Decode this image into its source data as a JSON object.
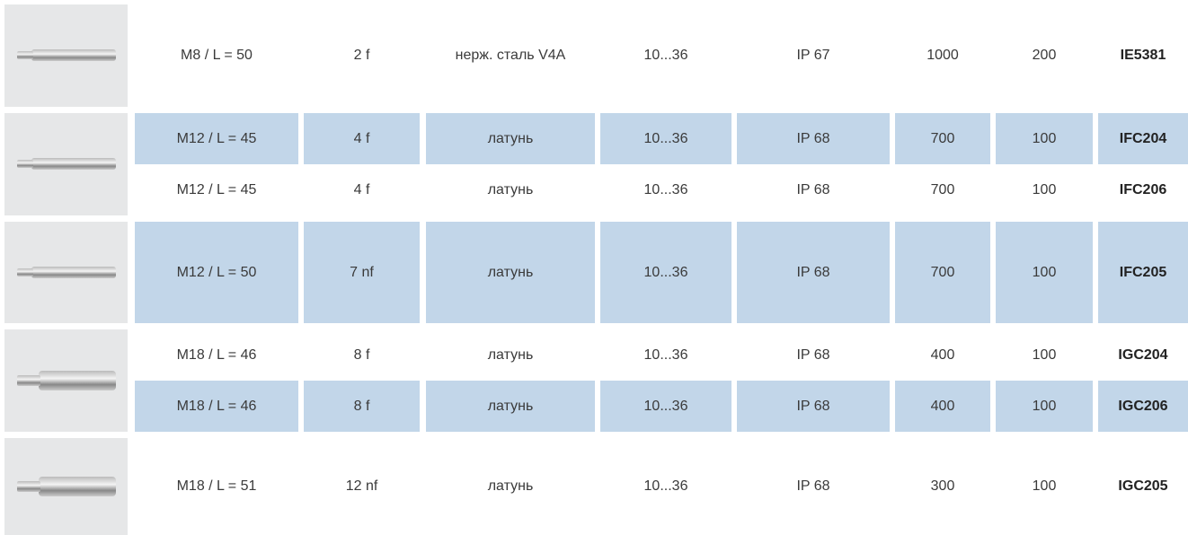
{
  "groups": [
    {
      "rows": [
        {
          "shaded": false,
          "cells": [
            "M8 / L = 50",
            "2 f",
            "нерж. сталь V4A",
            "10...36",
            "IP 67",
            "1000",
            "200",
            "IE5381"
          ]
        }
      ]
    },
    {
      "rows": [
        {
          "shaded": true,
          "cells": [
            "M12 / L = 45",
            "4 f",
            "латунь",
            "10...36",
            "IP 68",
            "700",
            "100",
            "IFC204"
          ]
        },
        {
          "shaded": false,
          "cells": [
            "M12 / L = 45",
            "4 f",
            "латунь",
            "10...36",
            "IP 68",
            "700",
            "100",
            "IFC206"
          ]
        }
      ]
    },
    {
      "rows": [
        {
          "shaded": true,
          "cells": [
            "M12 / L = 50",
            "7 nf",
            "латунь",
            "10...36",
            "IP 68",
            "700",
            "100",
            "IFC205"
          ]
        }
      ]
    },
    {
      "rows": [
        {
          "shaded": false,
          "cells": [
            "M18 / L = 46",
            "8 f",
            "латунь",
            "10...36",
            "IP 68",
            "400",
            "100",
            "IGC204"
          ]
        },
        {
          "shaded": true,
          "cells": [
            "M18 / L = 46",
            "8 f",
            "латунь",
            "10...36",
            "IP 68",
            "400",
            "100",
            "IGC206"
          ]
        }
      ]
    },
    {
      "rows": [
        {
          "shaded": false,
          "cells": [
            "M18 / L = 51",
            "12 nf",
            "латунь",
            "10...36",
            "IP 68",
            "300",
            "100",
            "IGC205"
          ]
        }
      ]
    }
  ]
}
